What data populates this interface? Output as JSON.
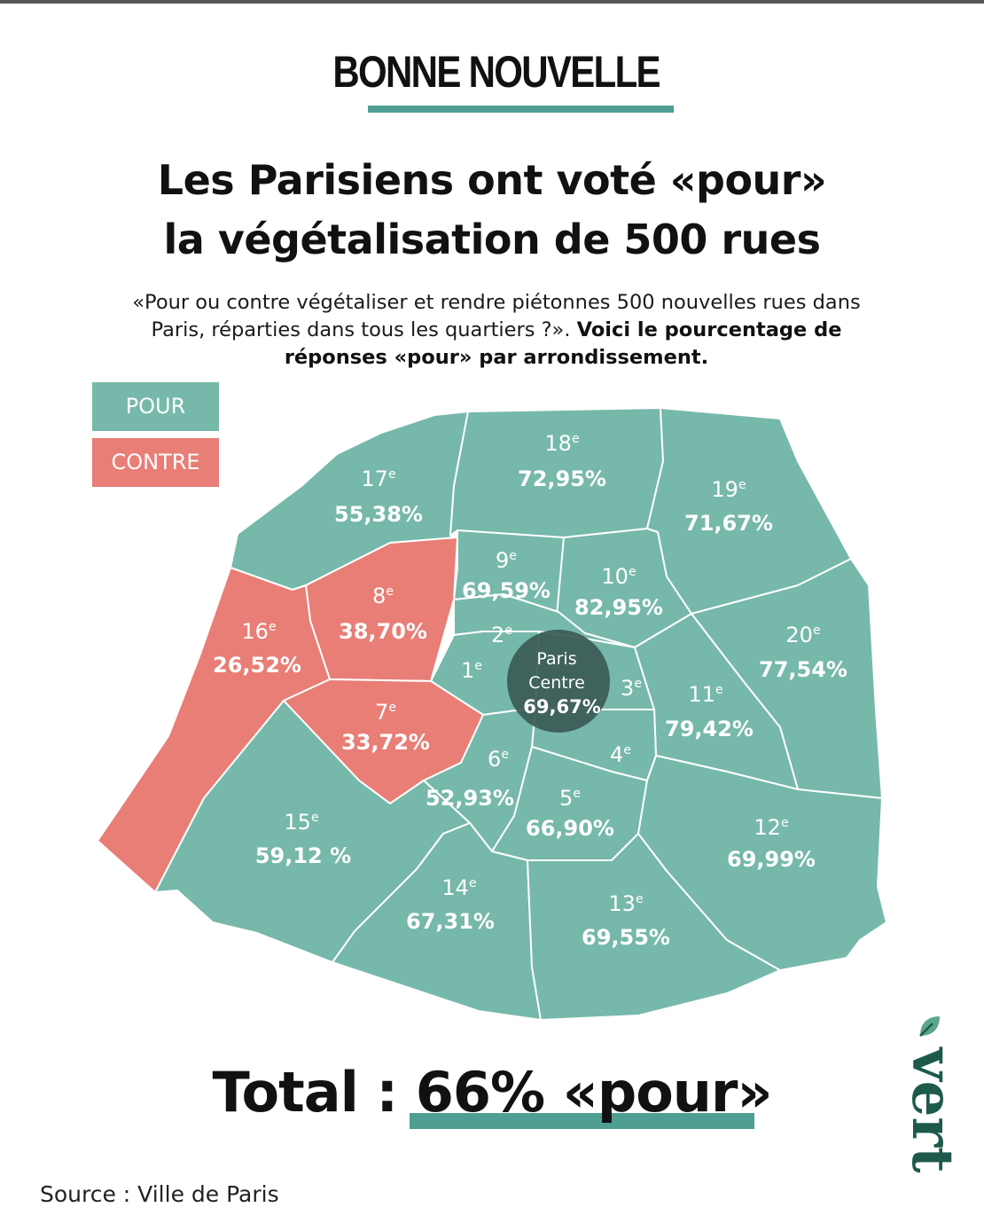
{
  "kicker": "BONNE NOUVELLE",
  "title": {
    "line1": "Les Parisiens ont voté «pour»",
    "line2": "la végétalisation de 500 rues"
  },
  "intro": {
    "line1": "«Pour ou contre végétaliser et rendre piétonnes 500 nouvelles rues dans",
    "line2_regular": "Paris, réparties dans tous les quartiers ?». ",
    "line2_bold": "Voici le pourcentage de",
    "line3_bold": "réponses «pour» par arrondissement."
  },
  "legend": {
    "pour": "POUR",
    "contre": "CONTRE"
  },
  "colors": {
    "pour": "#76b8aa",
    "contre": "#e87e76",
    "accent_line": "#4f9e92",
    "centre_circle": "#3b5a56",
    "logo": "#1d5a4c"
  },
  "districts": [
    {
      "id": "17",
      "num": "17",
      "sup": "e",
      "pct": "55,38%",
      "vote": "pour"
    },
    {
      "id": "18",
      "num": "18",
      "sup": "e",
      "pct": "72,95%",
      "vote": "pour"
    },
    {
      "id": "19",
      "num": "19",
      "sup": "e",
      "pct": "71,67%",
      "vote": "pour"
    },
    {
      "id": "9",
      "num": "9",
      "sup": "e",
      "pct": "69,59%",
      "vote": "pour"
    },
    {
      "id": "10",
      "num": "10",
      "sup": "e",
      "pct": "82,95%",
      "vote": "pour"
    },
    {
      "id": "8",
      "num": "8",
      "sup": "e",
      "pct": "38,70%",
      "vote": "contre"
    },
    {
      "id": "16",
      "num": "16",
      "sup": "e",
      "pct": "26,52%",
      "vote": "contre"
    },
    {
      "id": "20",
      "num": "20",
      "sup": "e",
      "pct": "77,54%",
      "vote": "pour"
    },
    {
      "id": "2",
      "num": "2",
      "sup": "e",
      "pct": "",
      "vote": "pour"
    },
    {
      "id": "1",
      "num": "1",
      "sup": "e",
      "pct": "",
      "vote": "pour"
    },
    {
      "id": "3",
      "num": "3",
      "sup": "e",
      "pct": "",
      "vote": "pour"
    },
    {
      "id": "11",
      "num": "11",
      "sup": "e",
      "pct": "79,42%",
      "vote": "pour"
    },
    {
      "id": "7",
      "num": "7",
      "sup": "e",
      "pct": "33,72%",
      "vote": "contre"
    },
    {
      "id": "4",
      "num": "4",
      "sup": "e",
      "pct": "",
      "vote": "pour"
    },
    {
      "id": "6",
      "num": "6",
      "sup": "e",
      "pct": "52,93%",
      "vote": "pour"
    },
    {
      "id": "5",
      "num": "5",
      "sup": "e",
      "pct": "66,90%",
      "vote": "pour"
    },
    {
      "id": "15",
      "num": "15",
      "sup": "e",
      "pct": "59,12 %",
      "vote": "pour"
    },
    {
      "id": "12",
      "num": "12",
      "sup": "e",
      "pct": "69,99%",
      "vote": "pour"
    },
    {
      "id": "14",
      "num": "14",
      "sup": "e",
      "pct": "67,31%",
      "vote": "pour"
    },
    {
      "id": "13",
      "num": "13",
      "sup": "e",
      "pct": "69,55%",
      "vote": "pour"
    }
  ],
  "paris_centre": {
    "line1": "Paris",
    "line2": "Centre",
    "pct": "69,67%"
  },
  "total": {
    "prefix": "Total : ",
    "value": "66% «pour»"
  },
  "source": "Source : Ville de Paris",
  "logo": {
    "text": "vert",
    "icon": "leaf-icon"
  }
}
